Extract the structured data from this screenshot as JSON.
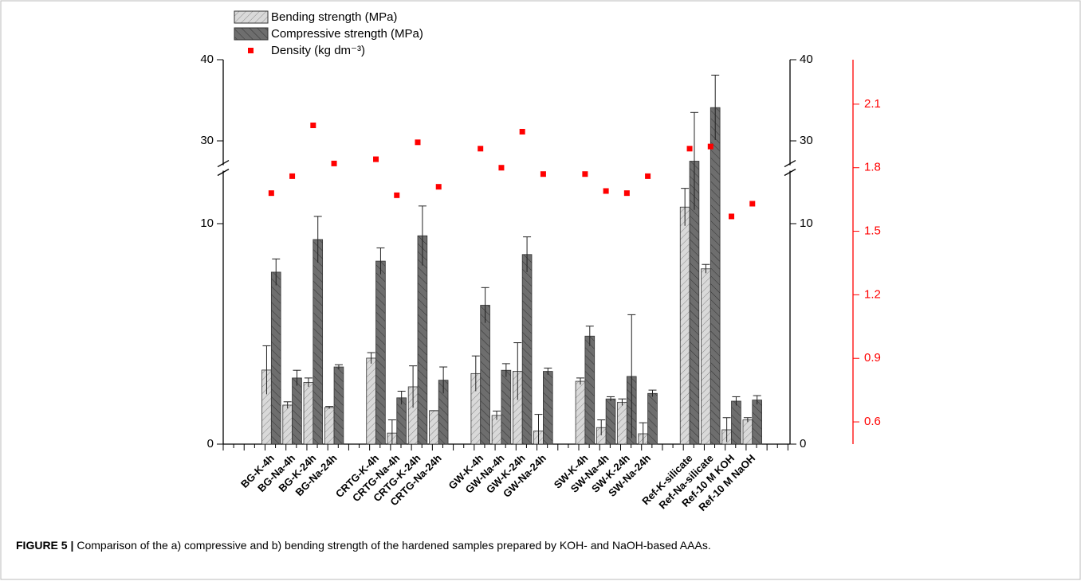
{
  "chart_data": {
    "type": "bar",
    "caption": {
      "label": "FIGURE 5 |",
      "text": "Comparison of the a) compressive and b) bending strength of the hardened samples prepared by KOH- and NaOH-based AAAs."
    },
    "categories": [
      "BG-K-4h",
      "BG-Na-4h",
      "BG-K-24h",
      "BG-Na-24h",
      null,
      "CRTG-K-4h",
      "CRTG-Na-4h",
      "CRTG-K-24h",
      "CRTG-Na-24h",
      null,
      "GW-K-4h",
      "GW-Na-4h",
      "GW-K-24h",
      "GW-Na-24h",
      null,
      "SW-K-4h",
      "SW-Na-4h",
      "SW-K-24h",
      "SW-Na-24h",
      null,
      "Ref-K-silicate",
      "Ref-Na-silicate",
      "Ref-10 M KOH",
      "Ref-10 M NaOH"
    ],
    "series": [
      {
        "name": "Bending strength (MPa)",
        "color": "#c8c8c8",
        "values": [
          3.36,
          1.77,
          2.8,
          1.66,
          null,
          3.9,
          0.5,
          2.6,
          1.52,
          null,
          3.2,
          1.3,
          3.3,
          0.6,
          null,
          2.85,
          0.75,
          1.9,
          0.47,
          null,
          10.75,
          7.95,
          0.65,
          1.1
        ],
        "errors": [
          1.1,
          0.15,
          0.2,
          0.05,
          null,
          0.25,
          0.6,
          0.95,
          0,
          null,
          0.8,
          0.2,
          1.3,
          0.75,
          null,
          0.15,
          0.35,
          0.15,
          0.5,
          null,
          0.85,
          0.2,
          0.55,
          0.1
        ]
      },
      {
        "name": "Compressive strength (MPa)",
        "color": "#6e6e6e",
        "values": [
          7.8,
          3.0,
          9.28,
          3.5,
          null,
          8.3,
          2.1,
          9.45,
          2.9,
          null,
          6.3,
          3.35,
          8.6,
          3.3,
          null,
          4.9,
          2.05,
          3.07,
          2.3,
          null,
          27.5,
          34.1,
          1.95,
          2.0
        ],
        "errors": [
          0.6,
          0.35,
          1.05,
          0.1,
          null,
          0.6,
          0.3,
          1.35,
          0.6,
          null,
          0.8,
          0.3,
          0.8,
          0.15,
          null,
          0.45,
          0.1,
          2.8,
          0.15,
          null,
          6,
          4,
          0.2,
          0.2
        ]
      },
      {
        "name": "Density (kg dm⁻³)",
        "color": "#ff0000",
        "axis": "y2",
        "type": "scatter",
        "values": [
          1.68,
          1.76,
          2.0,
          1.82,
          null,
          1.84,
          1.67,
          1.92,
          1.71,
          null,
          1.89,
          1.8,
          1.97,
          1.77,
          null,
          1.77,
          1.69,
          1.68,
          1.76,
          null,
          1.89,
          1.9,
          1.57,
          1.63
        ]
      }
    ],
    "ylim": [
      0,
      40
    ],
    "ybreak": [
      12.4,
      27
    ],
    "yticks": [
      0,
      10,
      30,
      40
    ],
    "y2lim": [
      0.495,
      2.31
    ],
    "y2ticks": [
      0.6,
      0.9,
      1.2,
      1.5,
      1.8,
      2.1
    ],
    "y2color": "#ff0000"
  }
}
